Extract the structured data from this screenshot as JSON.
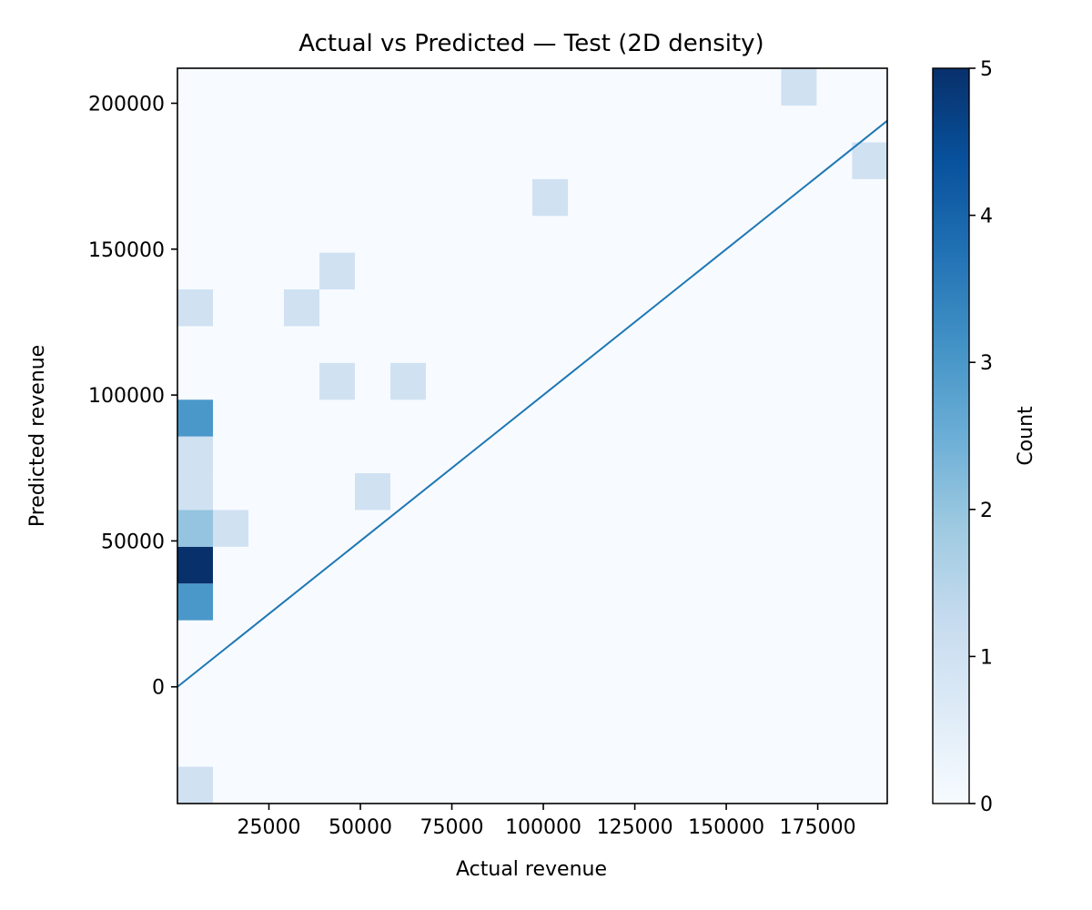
{
  "chart_data": {
    "type": "heatmap",
    "title": "Actual vs Predicted — Test (2D density)",
    "xlabel": "Actual revenue",
    "ylabel": "Predicted revenue",
    "xlim": [
      0,
      194000
    ],
    "ylim": [
      -40000,
      212000
    ],
    "x_ticks": [
      25000,
      50000,
      75000,
      100000,
      125000,
      150000,
      175000
    ],
    "x_tick_labels": [
      "25000",
      "50000",
      "75000",
      "100000",
      "125000",
      "150000",
      "175000"
    ],
    "y_ticks": [
      0,
      50000,
      100000,
      150000,
      200000
    ],
    "y_tick_labels": [
      "0",
      "50000",
      "100000",
      "150000",
      "200000"
    ],
    "bin_width_x": 9700,
    "bin_height_y": 12600,
    "colormap": "Blues",
    "colorbar": {
      "label": "Count",
      "min": 0,
      "max": 5,
      "ticks": [
        0,
        1,
        2,
        3,
        4,
        5
      ],
      "tick_labels": [
        "0",
        "1",
        "2",
        "3",
        "4",
        "5"
      ]
    },
    "cells": [
      {
        "x": 0,
        "y": -40000,
        "count": 1
      },
      {
        "x": 0,
        "y": 22800,
        "count": 3
      },
      {
        "x": 0,
        "y": 35400,
        "count": 5
      },
      {
        "x": 0,
        "y": 48000,
        "count": 2
      },
      {
        "x": 9700,
        "y": 48000,
        "count": 1
      },
      {
        "x": 0,
        "y": 60600,
        "count": 1
      },
      {
        "x": 0,
        "y": 73200,
        "count": 1
      },
      {
        "x": 0,
        "y": 85800,
        "count": 3
      },
      {
        "x": 0,
        "y": 123600,
        "count": 1
      },
      {
        "x": 29100,
        "y": 123600,
        "count": 1
      },
      {
        "x": 48500,
        "y": 60600,
        "count": 1
      },
      {
        "x": 38800,
        "y": 98400,
        "count": 1
      },
      {
        "x": 58200,
        "y": 98400,
        "count": 1
      },
      {
        "x": 38800,
        "y": 136200,
        "count": 1
      },
      {
        "x": 97000,
        "y": 161400,
        "count": 1
      },
      {
        "x": 165000,
        "y": 199200,
        "count": 1
      },
      {
        "x": 184400,
        "y": 174000,
        "count": 1
      }
    ],
    "reference_line": {
      "x": [
        0,
        194000
      ],
      "y": [
        0,
        194000
      ],
      "color": "#1f77b4"
    },
    "grid": false,
    "legend": "none"
  }
}
